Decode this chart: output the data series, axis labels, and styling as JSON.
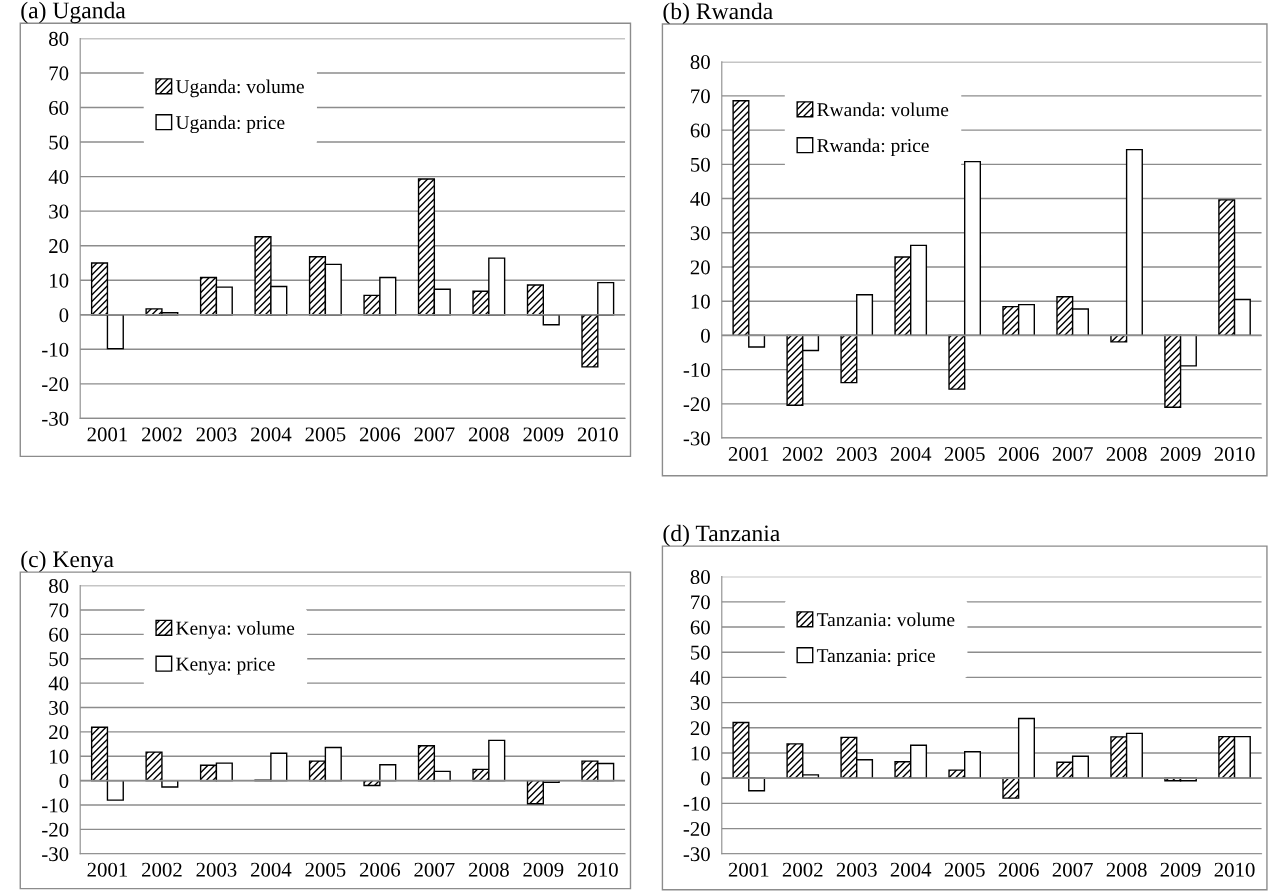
{
  "chart_data": [
    {
      "type": "bar",
      "title": "(a) Uganda",
      "categories": [
        "2001",
        "2002",
        "2003",
        "2004",
        "2005",
        "2006",
        "2007",
        "2008",
        "2009",
        "2010"
      ],
      "series": [
        {
          "name": "Uganda: volume",
          "color": "#000000",
          "values": [
            15,
            1.7,
            10.8,
            22.6,
            16.8,
            5.6,
            39.3,
            6.8,
            8.6,
            -15.1
          ]
        },
        {
          "name": "Uganda: price",
          "color": "#ffffff",
          "values": [
            -9.8,
            0.6,
            8,
            8.2,
            14.6,
            10.8,
            7.4,
            16.4,
            -2.9,
            9.3
          ]
        }
      ],
      "ylim": [
        -30,
        80
      ],
      "yticks": [
        -30,
        -20,
        -10,
        0,
        10,
        20,
        30,
        40,
        50,
        60,
        70,
        80
      ],
      "grid": "y",
      "legend": "top left"
    },
    {
      "type": "bar",
      "title": "(b) Rwanda",
      "categories": [
        "2001",
        "2002",
        "2003",
        "2004",
        "2005",
        "2006",
        "2007",
        "2008",
        "2009",
        "2010"
      ],
      "series": [
        {
          "name": "Rwanda: volume",
          "color": "#000000",
          "values": [
            68.6,
            -20.4,
            -13.8,
            22.9,
            -15.7,
            8.4,
            11.3,
            -1.9,
            -21,
            39.6
          ]
        },
        {
          "name": "Rwanda: price",
          "color": "#ffffff",
          "values": [
            -3.4,
            -4.4,
            11.9,
            26.3,
            50.8,
            9,
            7.7,
            54.3,
            -8.9,
            10.5
          ]
        }
      ],
      "ylim": [
        -30,
        80
      ],
      "yticks": [
        -30,
        -20,
        -10,
        0,
        10,
        20,
        30,
        40,
        50,
        60,
        70,
        80
      ],
      "grid": "y",
      "legend": "top left"
    },
    {
      "type": "bar",
      "title": "(c) Kenya",
      "categories": [
        "2001",
        "2002",
        "2003",
        "2004",
        "2005",
        "2006",
        "2007",
        "2008",
        "2009",
        "2010"
      ],
      "series": [
        {
          "name": "Kenya: volume",
          "color": "#000000",
          "values": [
            21.9,
            11.7,
            6.3,
            0.2,
            8,
            -2,
            14.3,
            4.6,
            -9.5,
            8
          ]
        },
        {
          "name": "Kenya: price",
          "color": "#ffffff",
          "values": [
            -8,
            -2.6,
            7.2,
            11.2,
            13.6,
            6.5,
            3.8,
            16.5,
            -0.7,
            7
          ]
        }
      ],
      "ylim": [
        -30,
        80
      ],
      "yticks": [
        -30,
        -20,
        -10,
        0,
        10,
        20,
        30,
        40,
        50,
        60,
        70,
        80
      ],
      "grid": "y",
      "legend": "top left"
    },
    {
      "type": "bar",
      "title": "(d) Tanzania",
      "categories": [
        "2001",
        "2002",
        "2003",
        "2004",
        "2005",
        "2006",
        "2007",
        "2008",
        "2009",
        "2010"
      ],
      "series": [
        {
          "name": "Tanzania: volume",
          "color": "#000000",
          "values": [
            22.1,
            13.6,
            16.2,
            6.5,
            3.2,
            -7.9,
            6.3,
            16.4,
            -1,
            16.5
          ]
        },
        {
          "name": "Tanzania: price",
          "color": "#ffffff",
          "values": [
            -5,
            1.3,
            7.3,
            13.1,
            10.5,
            23.7,
            8.7,
            17.8,
            -1,
            16.5
          ]
        }
      ],
      "ylim": [
        -30,
        80
      ],
      "yticks": [
        -30,
        -20,
        -10,
        0,
        10,
        20,
        30,
        40,
        50,
        60,
        70,
        80
      ],
      "grid": "y",
      "legend": "top left"
    }
  ]
}
